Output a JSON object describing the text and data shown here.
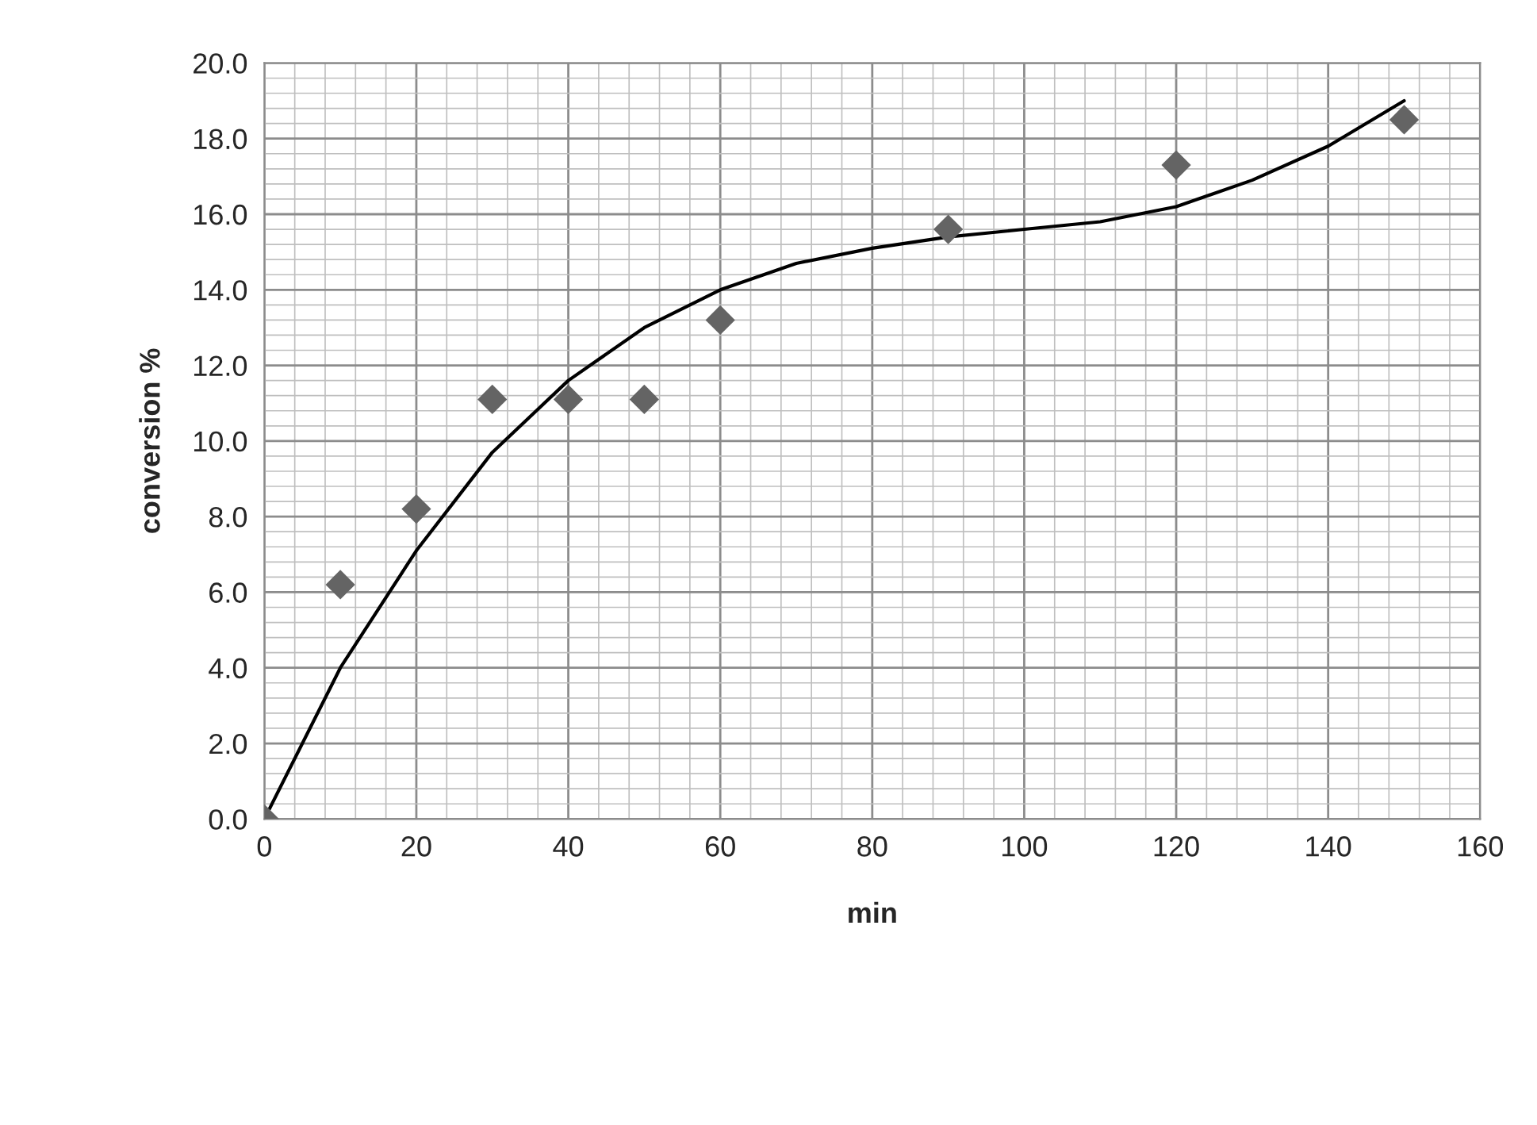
{
  "chart_data": {
    "type": "scatter",
    "xlabel": "min",
    "ylabel": "conversion %",
    "series": [
      {
        "color": "#646464",
        "marker": "diamond",
        "x": [
          0,
          10,
          20,
          30,
          40,
          50,
          60,
          90,
          120,
          150
        ],
        "values": [
          0.0,
          6.2,
          8.2,
          11.1,
          11.1,
          11.1,
          13.2,
          15.6,
          17.3,
          18.5
        ]
      },
      {
        "type": "line",
        "color": "#000000",
        "marker": "none",
        "x": [
          0,
          10,
          20,
          30,
          40,
          50,
          60,
          70,
          80,
          90,
          100,
          110,
          120,
          130,
          140,
          150
        ],
        "values": [
          0.0,
          4.0,
          7.1,
          9.7,
          11.6,
          13.0,
          14.0,
          14.7,
          15.1,
          15.4,
          15.6,
          15.8,
          16.2,
          16.9,
          17.8,
          19.0
        ]
      }
    ],
    "xlim": [
      0,
      160
    ],
    "xticks": [
      0,
      20,
      40,
      60,
      80,
      100,
      120,
      140,
      160
    ],
    "ylim": [
      0,
      20
    ],
    "yticks": [
      {
        "value": 0,
        "label": "0.0"
      },
      {
        "value": 2,
        "label": "2.0"
      },
      {
        "value": 4,
        "label": "4.0"
      },
      {
        "value": 6,
        "label": "6.0"
      },
      {
        "value": 8,
        "label": "8.0"
      },
      {
        "value": 10,
        "label": "10.0"
      },
      {
        "value": 12,
        "label": "12.0"
      },
      {
        "value": 14,
        "label": "14.0"
      },
      {
        "value": 16,
        "label": "16.0"
      },
      {
        "value": 18,
        "label": "18.0"
      },
      {
        "value": 20,
        "label": "20.0"
      }
    ],
    "grid": true,
    "legend": false
  }
}
